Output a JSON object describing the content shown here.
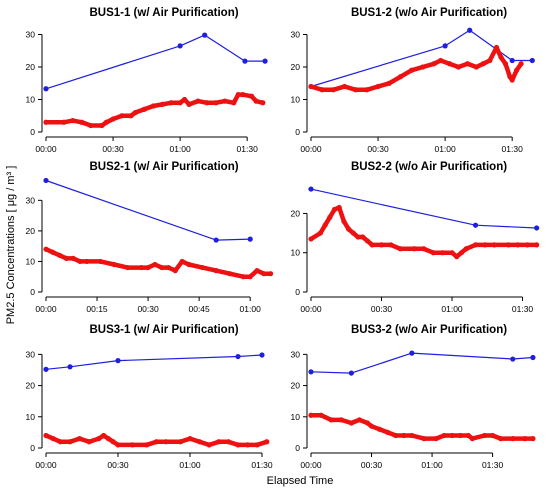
{
  "figure": {
    "ylabel": "PM2.5 Concentrations [ μg / m³ ]",
    "xlabel": "Elapsed Time",
    "colors": {
      "high_series": "#1f1fe0",
      "low_series": "#ee1111",
      "axis": "#000000"
    }
  },
  "chart_data": [
    {
      "type": "line",
      "title": "BUS1-1 (w/ Air Purification)",
      "xlabel": "",
      "ylabel": "",
      "xlim": [
        0,
        102
      ],
      "ylim": [
        0,
        32
      ],
      "xticks": [
        0,
        30,
        60,
        90
      ],
      "xtick_labels": [
        "00:00",
        "00:30",
        "01:00",
        "01:30"
      ],
      "yticks": [
        0,
        10,
        20,
        30
      ],
      "series": [
        {
          "values": [
            [
              0,
              13.3
            ],
            [
              60,
              26.5
            ],
            [
              71,
              29.8
            ],
            [
              89,
              21.8
            ],
            [
              98,
              21.8
            ]
          ],
          "color": "#1f1fe0",
          "markers": true,
          "style": "line"
        },
        {
          "values": [
            [
              0,
              3
            ],
            [
              8,
              3
            ],
            [
              12,
              3.5
            ],
            [
              16,
              3
            ],
            [
              20,
              2
            ],
            [
              25,
              2
            ],
            [
              27,
              3
            ],
            [
              30,
              4
            ],
            [
              34,
              5
            ],
            [
              38,
              5
            ],
            [
              40,
              6
            ],
            [
              44,
              7
            ],
            [
              48,
              8
            ],
            [
              52,
              8.5
            ],
            [
              56,
              9
            ],
            [
              60,
              9
            ],
            [
              62,
              10
            ],
            [
              64,
              8.5
            ],
            [
              68,
              9.5
            ],
            [
              72,
              9
            ],
            [
              76,
              9
            ],
            [
              80,
              9.5
            ],
            [
              84,
              9
            ],
            [
              86,
              11.5
            ],
            [
              88,
              11.5
            ],
            [
              92,
              11
            ],
            [
              94,
              9.5
            ],
            [
              97,
              9
            ]
          ],
          "color": "#ee1111",
          "markers": true,
          "style": "thick"
        }
      ]
    },
    {
      "type": "line",
      "title": "BUS1-2 (w/o Air Purification)",
      "xlabel": "",
      "ylabel": "",
      "xlim": [
        0,
        102
      ],
      "ylim": [
        0,
        32
      ],
      "xticks": [
        0,
        30,
        60,
        90
      ],
      "xtick_labels": [
        "00:00",
        "00:30",
        "01:00",
        "01:30"
      ],
      "yticks": [
        0,
        10,
        20,
        30
      ],
      "series": [
        {
          "values": [
            [
              0,
              14
            ],
            [
              60,
              26.5
            ],
            [
              71,
              31.3
            ],
            [
              90,
              22
            ],
            [
              99,
              22
            ]
          ],
          "color": "#1f1fe0",
          "markers": true,
          "style": "line"
        },
        {
          "values": [
            [
              0,
              14
            ],
            [
              5,
              13
            ],
            [
              10,
              13
            ],
            [
              15,
              14
            ],
            [
              20,
              13
            ],
            [
              25,
              13
            ],
            [
              30,
              14
            ],
            [
              35,
              15
            ],
            [
              40,
              17
            ],
            [
              45,
              19
            ],
            [
              50,
              20
            ],
            [
              55,
              21
            ],
            [
              58,
              22
            ],
            [
              62,
              21
            ],
            [
              66,
              20
            ],
            [
              70,
              21
            ],
            [
              74,
              20
            ],
            [
              77,
              21
            ],
            [
              80,
              22
            ],
            [
              83,
              26
            ],
            [
              85,
              23
            ],
            [
              87,
              21
            ],
            [
              89,
              17
            ],
            [
              90,
              16
            ],
            [
              92,
              19
            ],
            [
              94,
              21
            ]
          ],
          "color": "#ee1111",
          "markers": true,
          "style": "thick"
        }
      ]
    },
    {
      "type": "line",
      "title": "BUS2-1 (w/ Air Purification)",
      "xlabel": "",
      "ylabel": "",
      "xlim": [
        0,
        67
      ],
      "ylim": [
        0,
        36
      ],
      "xticks": [
        0,
        15,
        30,
        45,
        60
      ],
      "xtick_labels": [
        "00:00",
        "00:15",
        "00:30",
        "00:45",
        "01:00"
      ],
      "yticks": [
        0,
        10,
        20,
        30
      ],
      "series": [
        {
          "values": [
            [
              0,
              36.5
            ],
            [
              50,
              17
            ],
            [
              60,
              17.3
            ]
          ],
          "color": "#1f1fe0",
          "markers": true,
          "style": "line"
        },
        {
          "values": [
            [
              0,
              14
            ],
            [
              2,
              13
            ],
            [
              4,
              12
            ],
            [
              6,
              11
            ],
            [
              8,
              11
            ],
            [
              10,
              10
            ],
            [
              12,
              10
            ],
            [
              16,
              10
            ],
            [
              20,
              9
            ],
            [
              24,
              8
            ],
            [
              28,
              8
            ],
            [
              30,
              8
            ],
            [
              32,
              9
            ],
            [
              34,
              8
            ],
            [
              36,
              8
            ],
            [
              38,
              7
            ],
            [
              40,
              10
            ],
            [
              42,
              9
            ],
            [
              46,
              8
            ],
            [
              50,
              7
            ],
            [
              54,
              6
            ],
            [
              58,
              5
            ],
            [
              60,
              5
            ],
            [
              62,
              7
            ],
            [
              64,
              6
            ],
            [
              66,
              6
            ]
          ],
          "color": "#ee1111",
          "markers": true,
          "style": "thick"
        }
      ]
    },
    {
      "type": "line",
      "title": "BUS2-2 (w/o Air Purification)",
      "xlabel": "",
      "ylabel": "",
      "xlim": [
        0,
        97
      ],
      "ylim": [
        0,
        28
      ],
      "xticks": [
        0,
        30,
        60,
        90
      ],
      "xtick_labels": [
        "00:00",
        "00:30",
        "01:00",
        "01:30"
      ],
      "yticks": [
        0,
        10,
        20
      ],
      "series": [
        {
          "values": [
            [
              0,
              26.2
            ],
            [
              70,
              17
            ],
            [
              96,
              16.3
            ]
          ],
          "color": "#1f1fe0",
          "markers": true,
          "style": "line"
        },
        {
          "values": [
            [
              0,
              13.5
            ],
            [
              4,
              15
            ],
            [
              6,
              17
            ],
            [
              8,
              19
            ],
            [
              10,
              21
            ],
            [
              12,
              21.5
            ],
            [
              14,
              18
            ],
            [
              16,
              16
            ],
            [
              18,
              15
            ],
            [
              20,
              14
            ],
            [
              22,
              14
            ],
            [
              24,
              13
            ],
            [
              26,
              12
            ],
            [
              30,
              12
            ],
            [
              34,
              12
            ],
            [
              38,
              11
            ],
            [
              44,
              11
            ],
            [
              48,
              11
            ],
            [
              52,
              10
            ],
            [
              56,
              10
            ],
            [
              60,
              10
            ],
            [
              62,
              9
            ],
            [
              64,
              10
            ],
            [
              66,
              11
            ],
            [
              70,
              12
            ],
            [
              74,
              12
            ],
            [
              78,
              12
            ],
            [
              84,
              12
            ],
            [
              88,
              12
            ],
            [
              92,
              12
            ],
            [
              96,
              12
            ]
          ],
          "color": "#ee1111",
          "markers": true,
          "style": "thick"
        }
      ]
    },
    {
      "type": "line",
      "title": "BUS3-1 (w/ Air Purification)",
      "xlabel": "",
      "ylabel": "",
      "xlim": [
        0,
        95
      ],
      "ylim": [
        0,
        33
      ],
      "xticks": [
        0,
        30,
        60,
        90
      ],
      "xtick_labels": [
        "00:00",
        "00:30",
        "01:00",
        "01:30"
      ],
      "yticks": [
        0,
        10,
        20,
        30
      ],
      "series": [
        {
          "values": [
            [
              0,
              25.2
            ],
            [
              10,
              26
            ],
            [
              30,
              28
            ],
            [
              80,
              29.3
            ],
            [
              90,
              29.8
            ]
          ],
          "color": "#1f1fe0",
          "markers": true,
          "style": "line"
        },
        {
          "values": [
            [
              0,
              4
            ],
            [
              3,
              3
            ],
            [
              6,
              2
            ],
            [
              10,
              2
            ],
            [
              14,
              3
            ],
            [
              18,
              2
            ],
            [
              22,
              3
            ],
            [
              24,
              4
            ],
            [
              26,
              3
            ],
            [
              28,
              2
            ],
            [
              30,
              1
            ],
            [
              36,
              1
            ],
            [
              42,
              1
            ],
            [
              46,
              2
            ],
            [
              50,
              2
            ],
            [
              56,
              2
            ],
            [
              60,
              3
            ],
            [
              64,
              2
            ],
            [
              68,
              1
            ],
            [
              72,
              2
            ],
            [
              76,
              2
            ],
            [
              80,
              1
            ],
            [
              84,
              1
            ],
            [
              88,
              1
            ],
            [
              92,
              2
            ]
          ],
          "color": "#ee1111",
          "markers": true,
          "style": "thick"
        }
      ]
    },
    {
      "type": "line",
      "title": "BUS3-2 (w/o Air Purification)",
      "xlabel": "",
      "ylabel": "",
      "xlim": [
        0,
        113
      ],
      "ylim": [
        0,
        33
      ],
      "xticks": [
        0,
        30,
        60,
        90
      ],
      "xtick_labels": [
        "00:00",
        "00:30",
        "01:00",
        "01:30"
      ],
      "yticks": [
        0,
        10,
        20,
        30
      ],
      "series": [
        {
          "values": [
            [
              0,
              24.4
            ],
            [
              20,
              24
            ],
            [
              50,
              30.4
            ],
            [
              100,
              28.5
            ],
            [
              110,
              29
            ]
          ],
          "color": "#1f1fe0",
          "markers": true,
          "style": "line"
        },
        {
          "values": [
            [
              0,
              10.5
            ],
            [
              5,
              10.5
            ],
            [
              10,
              9
            ],
            [
              15,
              9
            ],
            [
              20,
              8
            ],
            [
              24,
              9
            ],
            [
              28,
              8
            ],
            [
              30,
              7
            ],
            [
              34,
              6
            ],
            [
              38,
              5
            ],
            [
              42,
              4
            ],
            [
              46,
              4
            ],
            [
              50,
              4
            ],
            [
              56,
              3
            ],
            [
              62,
              3
            ],
            [
              66,
              4
            ],
            [
              70,
              4
            ],
            [
              74,
              4
            ],
            [
              78,
              4
            ],
            [
              80,
              3
            ],
            [
              86,
              4
            ],
            [
              90,
              4
            ],
            [
              94,
              3
            ],
            [
              100,
              3
            ],
            [
              106,
              3
            ],
            [
              110,
              3
            ]
          ],
          "color": "#ee1111",
          "markers": true,
          "style": "thick"
        }
      ]
    }
  ]
}
